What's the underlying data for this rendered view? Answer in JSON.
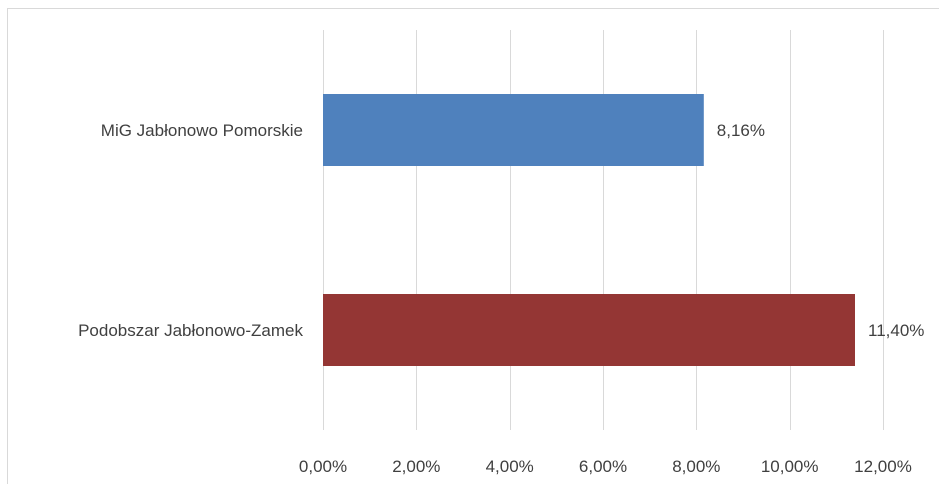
{
  "chart_data": {
    "type": "bar",
    "orientation": "horizontal",
    "categories": [
      "MiG Jabłonowo Pomorskie",
      "Podobszar Jabłonowo-Zamek"
    ],
    "values": [
      8.16,
      11.4
    ],
    "data_labels": [
      "8,16%",
      "11,40%"
    ],
    "colors": [
      "#4f81bd",
      "#943634"
    ],
    "xlim": [
      0,
      12
    ],
    "x_ticks": [
      0,
      2,
      4,
      6,
      8,
      10,
      12
    ],
    "x_tick_labels": [
      "0,00%",
      "2,00%",
      "4,00%",
      "6,00%",
      "8,00%",
      "10,00%",
      "12,00%"
    ],
    "grid": true,
    "legend": "none"
  }
}
